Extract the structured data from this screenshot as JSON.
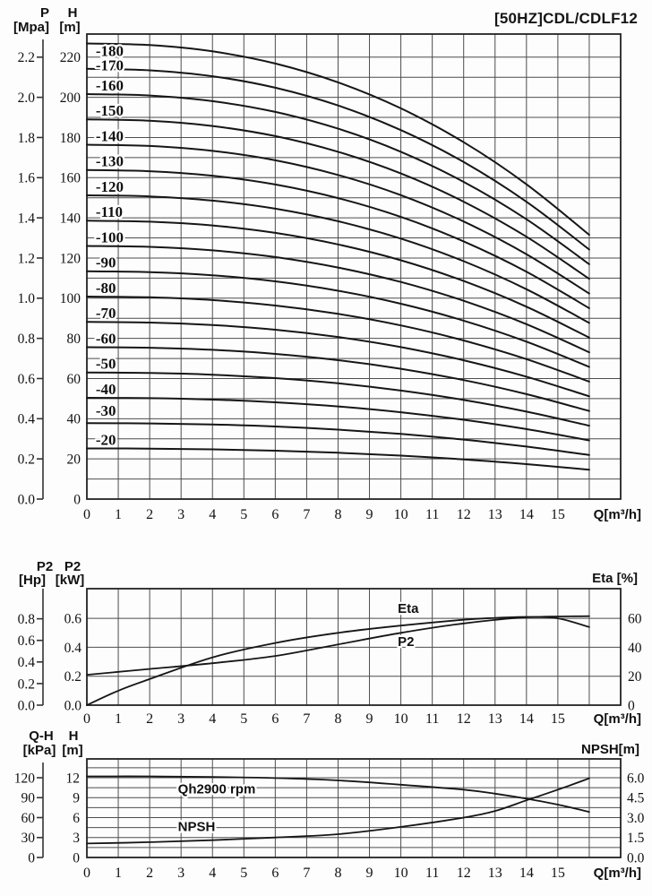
{
  "title": "[50HZ]CDL/CDLF12",
  "colors": {
    "line": "#161616",
    "grid": "#4d4d4d",
    "border": "#222222",
    "background": "#fdfdfd",
    "text": "#111111"
  },
  "chart_data": [
    {
      "id": "head-curves",
      "type": "line",
      "title": "[50HZ]CDL/CDLF12",
      "xlabel": "Q[m³/h]",
      "x_ticks": [
        0,
        1,
        2,
        3,
        4,
        5,
        6,
        7,
        8,
        9,
        10,
        11,
        12,
        13,
        14,
        15
      ],
      "x_range": [
        0,
        17
      ],
      "grid": true,
      "axes": {
        "p": {
          "name": "P",
          "unit": "[Mpa]",
          "ticks": [
            "0.0",
            "0.2",
            "0.4",
            "0.6",
            "0.8",
            "1.0",
            "1.2",
            "1.4",
            "1.6",
            "1.8",
            "2.0",
            "2.2"
          ],
          "m_per_unit": 100
        },
        "h": {
          "name": "H",
          "unit": "[m]",
          "ticks": [
            0,
            20,
            40,
            60,
            80,
            100,
            120,
            140,
            160,
            180,
            200,
            220
          ]
        }
      },
      "y_range_m": [
        0,
        231.5
      ],
      "q_points": [
        0,
        2,
        4,
        6,
        8,
        10,
        12,
        14,
        16
      ],
      "head_factors": [
        1,
        0.9965,
        0.9827,
        0.956,
        0.9147,
        0.8576,
        0.7833,
        0.691,
        0.58
      ],
      "series": [
        {
          "label": "-180",
          "shutoff_head_m": 226.8,
          "label_h_m": 223.3
        },
        {
          "label": "-170",
          "shutoff_head_m": 214.2,
          "label_h_m": 216.2
        },
        {
          "label": "-160",
          "shutoff_head_m": 201.6,
          "label_h_m": 206.1
        },
        {
          "label": "-150",
          "shutoff_head_m": 189.0,
          "label_h_m": 193.5
        },
        {
          "label": "-140",
          "shutoff_head_m": 176.4,
          "label_h_m": 180.9
        },
        {
          "label": "-130",
          "shutoff_head_m": 163.8,
          "label_h_m": 168.3
        },
        {
          "label": "-120",
          "shutoff_head_m": 151.2,
          "label_h_m": 155.7
        },
        {
          "label": "-110",
          "shutoff_head_m": 138.6,
          "label_h_m": 143.1
        },
        {
          "label": "-100",
          "shutoff_head_m": 126.0,
          "label_h_m": 130.5
        },
        {
          "label": "-90",
          "shutoff_head_m": 113.4,
          "label_h_m": 117.9
        },
        {
          "label": "-80",
          "shutoff_head_m": 100.8,
          "label_h_m": 105.3
        },
        {
          "label": "-70",
          "shutoff_head_m": 88.2,
          "label_h_m": 92.7
        },
        {
          "label": "-60",
          "shutoff_head_m": 75.6,
          "label_h_m": 80.1
        },
        {
          "label": "-50",
          "shutoff_head_m": 63.0,
          "label_h_m": 67.5
        },
        {
          "label": "-40",
          "shutoff_head_m": 50.4,
          "label_h_m": 54.9
        },
        {
          "label": "-30",
          "shutoff_head_m": 37.8,
          "label_h_m": 44.1
        },
        {
          "label": "-20",
          "shutoff_head_m": 25.2,
          "label_h_m": 29.7
        }
      ]
    },
    {
      "id": "power-efficiency",
      "type": "line",
      "xlabel": "Q[m³/h]",
      "x_ticks": [
        0,
        1,
        2,
        3,
        4,
        5,
        6,
        7,
        8,
        9,
        10,
        11,
        12,
        13,
        14,
        15
      ],
      "x_range": [
        0,
        17
      ],
      "grid": true,
      "axes": {
        "hp": {
          "name": "P2",
          "unit": "[Hp]",
          "ticks": [
            "0.0",
            "0.2",
            "0.4",
            "0.6",
            "0.8"
          ],
          "kw_per_unit": 0.746
        },
        "kw": {
          "name": "P2",
          "unit": "[kW]",
          "ticks": [
            "0.0",
            "0.2",
            "0.4",
            "0.6"
          ]
        },
        "eta": {
          "label": "Eta [%]",
          "ticks": [
            0,
            20,
            40,
            60
          ],
          "kw_per_unit": 0.01
        }
      },
      "y_range_kw": [
        0,
        0.805
      ],
      "series": [
        {
          "name": "P2",
          "unit": "kW",
          "q": [
            0,
            2,
            4,
            6,
            8,
            10,
            12,
            14,
            16
          ],
          "values": [
            0.21,
            0.25,
            0.29,
            0.34,
            0.42,
            0.5,
            0.565,
            0.607,
            0.615
          ],
          "label_q": 9.9,
          "label_kw": 0.44
        },
        {
          "name": "Eta",
          "unit": "%",
          "q": [
            0,
            1,
            2,
            4,
            6,
            8,
            10,
            12,
            13,
            14,
            15,
            16
          ],
          "values": [
            0,
            10,
            18,
            33,
            43,
            50,
            55,
            59,
            60.3,
            61,
            60,
            54
          ],
          "label_q": 9.9,
          "label_kw": 0.67
        }
      ]
    },
    {
      "id": "single-stage-qh-npsh",
      "type": "line",
      "xlabel": "Q[m³/h]",
      "x_ticks": [
        0,
        1,
        2,
        3,
        4,
        5,
        6,
        7,
        8,
        9,
        10,
        11,
        12,
        13,
        14,
        15
      ],
      "x_range": [
        0,
        17
      ],
      "grid": true,
      "axes": {
        "kpa": {
          "name": "Q-H",
          "unit": "[kPa]",
          "ticks": [
            0,
            30,
            60,
            90,
            120
          ],
          "m_per_unit": 0.1
        },
        "m": {
          "name": "H",
          "unit": "[m]",
          "ticks": [
            0,
            3,
            6,
            9,
            12
          ]
        },
        "npsh": {
          "label": "NPSH[m]",
          "ticks": [
            "0.0",
            "1.5",
            "3.0",
            "4.5",
            "6.0"
          ],
          "m_per_unit": 2
        }
      },
      "y_range_m": [
        0,
        14.83
      ],
      "series": [
        {
          "name": "Qh2900 rpm",
          "q": [
            0,
            2,
            4,
            6,
            8,
            10,
            12,
            13,
            14,
            15,
            16
          ],
          "values_m": [
            12.2,
            12.2,
            12.1,
            11.95,
            11.6,
            10.95,
            10.2,
            9.6,
            8.85,
            7.95,
            6.85
          ],
          "label_q": 2.9,
          "label_m": 10.35
        },
        {
          "name": "NPSH",
          "q": [
            0,
            2,
            4,
            6,
            8,
            10,
            12,
            13,
            14,
            15,
            16
          ],
          "values_npsh": [
            1.05,
            1.15,
            1.3,
            1.5,
            1.75,
            2.3,
            3.0,
            3.5,
            4.3,
            5.1,
            5.95
          ],
          "label_q": 2.9,
          "label_m": 4.7
        }
      ]
    }
  ]
}
